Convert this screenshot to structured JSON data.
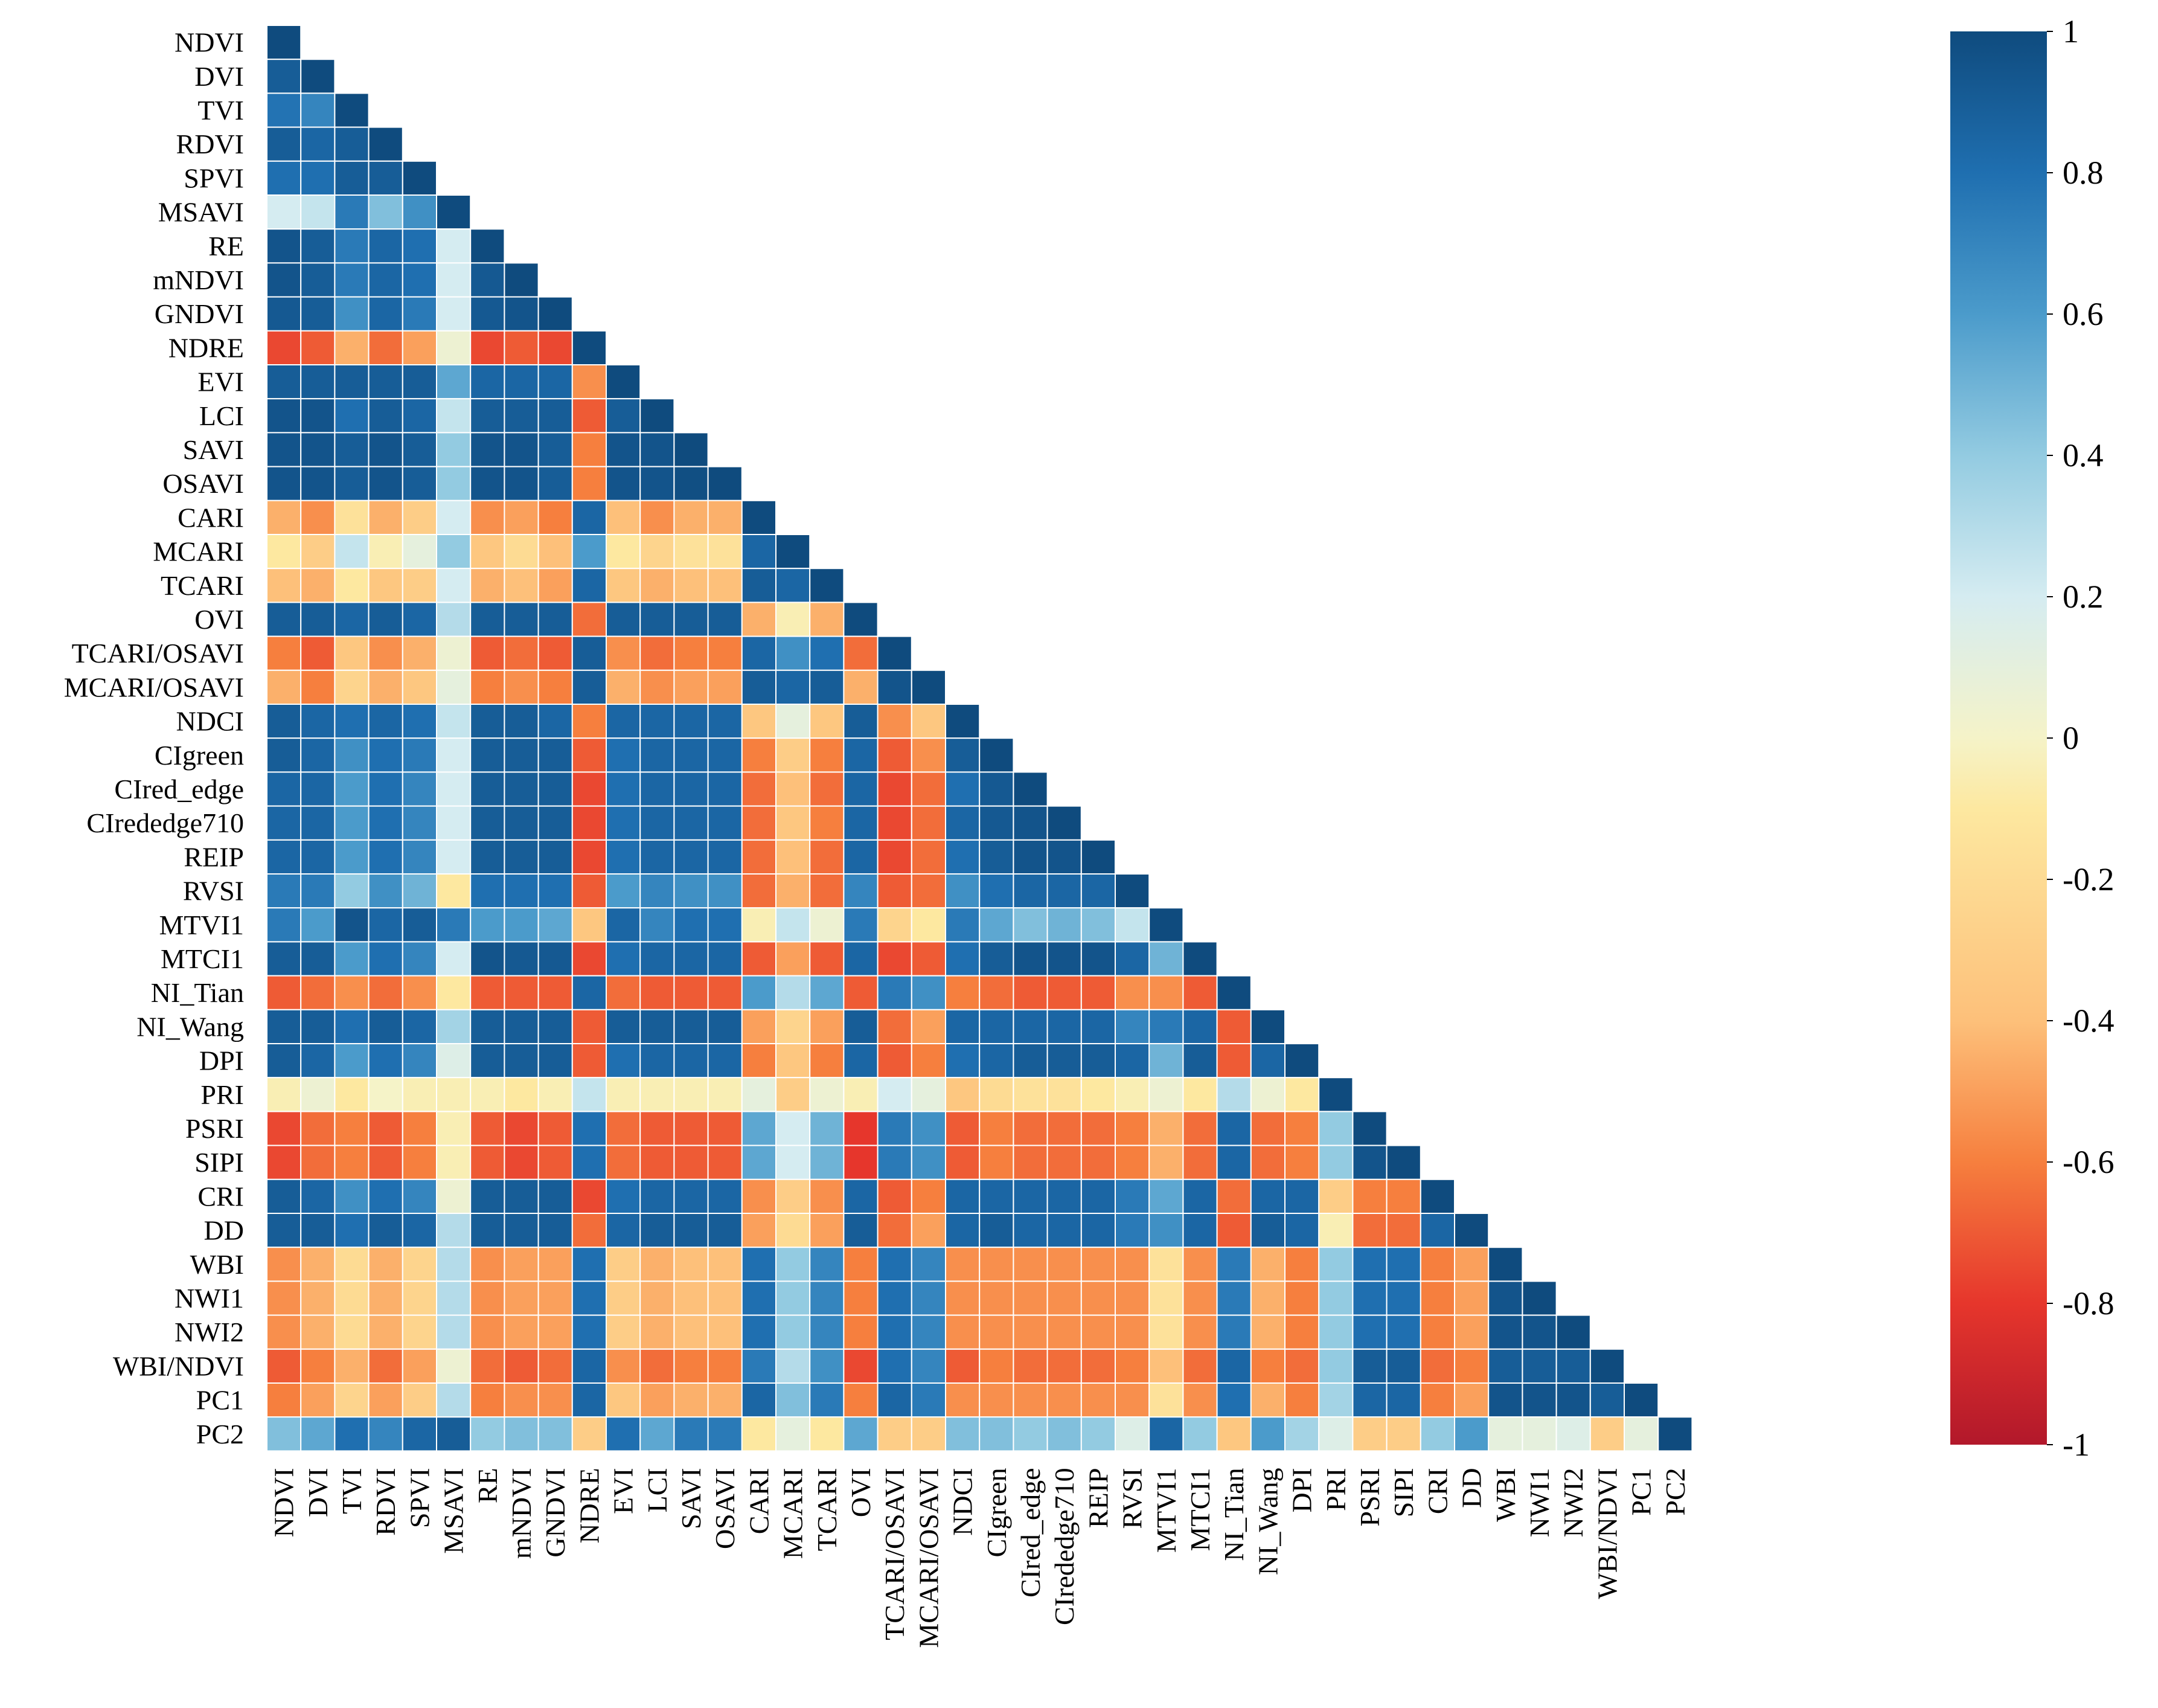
{
  "chart_data": {
    "type": "heatmap",
    "shape": "lower-triangle",
    "title": "",
    "xlabel": "",
    "ylabel": "",
    "variables": [
      "NDVI",
      "DVI",
      "TVI",
      "RDVI",
      "SPVI",
      "MSAVI",
      "RE",
      "mNDVI",
      "GNDVI",
      "NDRE",
      "EVI",
      "LCI",
      "SAVI",
      "OSAVI",
      "CARI",
      "MCARI",
      "TCARI",
      "OVI",
      "TCARI/OSAVI",
      "MCARI/OSAVI",
      "NDCI",
      "CIgreen",
      "CIred_edge",
      "CIrededge710",
      "REIP",
      "RVSI",
      "MTVI1",
      "MTCI1",
      "NI_Tian",
      "NI_Wang",
      "DPI",
      "PRI",
      "PSRI",
      "SIPI",
      "CRI",
      "DD",
      "WBI",
      "NWI1",
      "NWI2",
      "WBI/NDVI",
      "PC1",
      "PC2"
    ],
    "matrix": [
      [
        1
      ],
      [
        0.9,
        1
      ],
      [
        0.78,
        0.7,
        1
      ],
      [
        0.9,
        0.85,
        0.9,
        1
      ],
      [
        0.8,
        0.8,
        0.9,
        0.9,
        1
      ],
      [
        0.2,
        0.25,
        0.75,
        0.45,
        0.65,
        1
      ],
      [
        0.95,
        0.9,
        0.75,
        0.85,
        0.8,
        0.2,
        1
      ],
      [
        0.95,
        0.9,
        0.75,
        0.85,
        0.8,
        0.2,
        0.92,
        1
      ],
      [
        0.92,
        0.9,
        0.65,
        0.85,
        0.75,
        0.2,
        0.92,
        0.95,
        1
      ],
      [
        -0.75,
        -0.7,
        -0.45,
        -0.65,
        -0.5,
        0.05,
        -0.75,
        -0.7,
        -0.75,
        1
      ],
      [
        0.9,
        0.9,
        0.9,
        0.9,
        0.9,
        0.55,
        0.85,
        0.85,
        0.85,
        -0.55,
        1
      ],
      [
        0.95,
        0.95,
        0.8,
        0.9,
        0.85,
        0.25,
        0.9,
        0.9,
        0.9,
        -0.7,
        0.9,
        1
      ],
      [
        0.95,
        0.95,
        0.9,
        0.95,
        0.9,
        0.4,
        0.95,
        0.95,
        0.9,
        -0.6,
        0.95,
        0.95,
        1
      ],
      [
        0.95,
        0.95,
        0.9,
        0.95,
        0.9,
        0.4,
        0.95,
        0.95,
        0.9,
        -0.6,
        0.95,
        0.95,
        0.98,
        1
      ],
      [
        -0.45,
        -0.55,
        -0.15,
        -0.45,
        -0.3,
        0.2,
        -0.55,
        -0.5,
        -0.6,
        0.85,
        -0.4,
        -0.55,
        -0.45,
        -0.45,
        1
      ],
      [
        -0.1,
        -0.3,
        0.25,
        -0.05,
        0.1,
        0.4,
        -0.35,
        -0.2,
        -0.4,
        0.6,
        -0.1,
        -0.25,
        -0.15,
        -0.15,
        0.85,
        1
      ],
      [
        -0.4,
        -0.45,
        -0.1,
        -0.35,
        -0.3,
        0.2,
        -0.45,
        -0.4,
        -0.5,
        0.85,
        -0.35,
        -0.45,
        -0.4,
        -0.4,
        0.9,
        0.85,
        1
      ],
      [
        0.9,
        0.9,
        0.85,
        0.9,
        0.85,
        0.3,
        0.9,
        0.9,
        0.9,
        -0.65,
        0.9,
        0.9,
        0.9,
        0.9,
        -0.45,
        -0.05,
        -0.45,
        1
      ],
      [
        -0.6,
        -0.7,
        -0.35,
        -0.55,
        -0.45,
        0.05,
        -0.7,
        -0.65,
        -0.7,
        0.9,
        -0.55,
        -0.65,
        -0.6,
        -0.6,
        0.85,
        0.65,
        0.8,
        -0.65,
        1
      ],
      [
        -0.45,
        -0.6,
        -0.25,
        -0.45,
        -0.35,
        0.1,
        -0.6,
        -0.55,
        -0.6,
        0.9,
        -0.45,
        -0.55,
        -0.5,
        -0.5,
        0.9,
        0.85,
        0.9,
        -0.45,
        0.95,
        1
      ],
      [
        0.9,
        0.85,
        0.8,
        0.85,
        0.8,
        0.25,
        0.9,
        0.9,
        0.85,
        -0.6,
        0.85,
        0.85,
        0.85,
        0.85,
        -0.35,
        0.1,
        -0.35,
        0.9,
        -0.55,
        -0.35,
        1
      ],
      [
        0.9,
        0.85,
        0.65,
        0.8,
        0.75,
        0.2,
        0.9,
        0.9,
        0.9,
        -0.7,
        0.8,
        0.85,
        0.85,
        0.85,
        -0.6,
        -0.3,
        -0.6,
        0.85,
        -0.7,
        -0.55,
        0.9,
        1
      ],
      [
        0.85,
        0.85,
        0.6,
        0.8,
        0.7,
        0.2,
        0.9,
        0.9,
        0.9,
        -0.75,
        0.8,
        0.85,
        0.85,
        0.85,
        -0.65,
        -0.4,
        -0.65,
        0.85,
        -0.75,
        -0.65,
        0.8,
        0.92,
        1
      ],
      [
        0.85,
        0.85,
        0.6,
        0.8,
        0.7,
        0.2,
        0.9,
        0.9,
        0.9,
        -0.75,
        0.8,
        0.85,
        0.85,
        0.85,
        -0.65,
        -0.35,
        -0.6,
        0.85,
        -0.75,
        -0.65,
        0.85,
        0.92,
        0.95,
        1
      ],
      [
        0.85,
        0.85,
        0.6,
        0.8,
        0.7,
        0.2,
        0.9,
        0.9,
        0.9,
        -0.75,
        0.8,
        0.85,
        0.85,
        0.85,
        -0.65,
        -0.4,
        -0.65,
        0.85,
        -0.75,
        -0.65,
        0.8,
        0.9,
        0.95,
        0.95,
        1
      ],
      [
        0.75,
        0.75,
        0.4,
        0.65,
        0.5,
        -0.1,
        0.8,
        0.8,
        0.8,
        -0.7,
        0.6,
        0.7,
        0.65,
        0.65,
        -0.65,
        -0.45,
        -0.65,
        0.7,
        -0.7,
        -0.65,
        0.65,
        0.8,
        0.85,
        0.85,
        0.85,
        1
      ],
      [
        0.75,
        0.6,
        0.95,
        0.85,
        0.9,
        0.75,
        0.6,
        0.6,
        0.55,
        -0.35,
        0.85,
        0.7,
        0.8,
        0.8,
        -0.05,
        0.25,
        0.05,
        0.75,
        -0.25,
        -0.1,
        0.75,
        0.55,
        0.45,
        0.5,
        0.45,
        0.25,
        1
      ],
      [
        0.9,
        0.9,
        0.6,
        0.8,
        0.7,
        0.2,
        0.95,
        0.92,
        0.92,
        -0.75,
        0.8,
        0.85,
        0.85,
        0.85,
        -0.7,
        -0.5,
        -0.7,
        0.85,
        -0.75,
        -0.7,
        0.8,
        0.9,
        0.95,
        0.95,
        0.95,
        0.85,
        0.5,
        1
      ],
      [
        -0.7,
        -0.65,
        -0.55,
        -0.65,
        -0.55,
        -0.1,
        -0.7,
        -0.7,
        -0.7,
        0.85,
        -0.65,
        -0.7,
        -0.7,
        -0.7,
        0.6,
        0.3,
        0.55,
        -0.7,
        0.75,
        0.65,
        -0.6,
        -0.65,
        -0.7,
        -0.7,
        -0.7,
        -0.55,
        -0.55,
        -0.7,
        1
      ],
      [
        0.9,
        0.9,
        0.8,
        0.9,
        0.85,
        0.35,
        0.9,
        0.9,
        0.9,
        -0.7,
        0.9,
        0.9,
        0.9,
        0.9,
        -0.5,
        -0.25,
        -0.5,
        0.9,
        -0.65,
        -0.5,
        0.85,
        0.85,
        0.85,
        0.85,
        0.85,
        0.7,
        0.75,
        0.85,
        -0.7,
        1
      ],
      [
        0.9,
        0.85,
        0.6,
        0.8,
        0.7,
        0.15,
        0.9,
        0.9,
        0.9,
        -0.7,
        0.8,
        0.85,
        0.85,
        0.85,
        -0.6,
        -0.35,
        -0.6,
        0.85,
        -0.7,
        -0.6,
        0.8,
        0.85,
        0.9,
        0.9,
        0.9,
        0.85,
        0.5,
        0.9,
        -0.7,
        0.85,
        1
      ],
      [
        -0.05,
        0.05,
        -0.1,
        0,
        -0.05,
        -0.05,
        -0.05,
        -0.1,
        -0.05,
        0.25,
        -0.05,
        -0.05,
        -0.05,
        -0.05,
        0.1,
        -0.3,
        0.05,
        -0.05,
        0.2,
        0.1,
        -0.35,
        -0.2,
        -0.15,
        -0.15,
        -0.1,
        -0.05,
        0.05,
        -0.1,
        0.3,
        0.05,
        -0.1,
        1
      ],
      [
        -0.75,
        -0.65,
        -0.6,
        -0.7,
        -0.6,
        -0.05,
        -0.7,
        -0.75,
        -0.7,
        0.8,
        -0.65,
        -0.7,
        -0.7,
        -0.7,
        0.55,
        0.2,
        0.5,
        -0.8,
        0.75,
        0.65,
        -0.7,
        -0.6,
        -0.65,
        -0.65,
        -0.65,
        -0.6,
        -0.45,
        -0.65,
        0.85,
        -0.65,
        -0.6,
        0.4,
        1
      ],
      [
        -0.75,
        -0.65,
        -0.6,
        -0.7,
        -0.6,
        -0.05,
        -0.7,
        -0.75,
        -0.7,
        0.8,
        -0.65,
        -0.7,
        -0.7,
        -0.7,
        0.55,
        0.2,
        0.5,
        -0.8,
        0.75,
        0.65,
        -0.7,
        -0.6,
        -0.65,
        -0.65,
        -0.65,
        -0.6,
        -0.45,
        -0.65,
        0.85,
        -0.65,
        -0.6,
        0.4,
        0.95,
        1
      ],
      [
        0.9,
        0.85,
        0.65,
        0.8,
        0.7,
        0.05,
        0.9,
        0.9,
        0.9,
        -0.75,
        0.8,
        0.85,
        0.85,
        0.85,
        -0.55,
        -0.3,
        -0.55,
        0.85,
        -0.7,
        -0.6,
        0.85,
        0.85,
        0.85,
        0.85,
        0.85,
        0.75,
        0.55,
        0.85,
        -0.65,
        0.85,
        0.85,
        -0.3,
        -0.6,
        -0.6,
        1
      ],
      [
        0.9,
        0.9,
        0.8,
        0.9,
        0.85,
        0.3,
        0.9,
        0.9,
        0.9,
        -0.65,
        0.85,
        0.9,
        0.9,
        0.9,
        -0.5,
        -0.2,
        -0.5,
        0.9,
        -0.65,
        -0.5,
        0.85,
        0.9,
        0.85,
        0.85,
        0.85,
        0.75,
        0.65,
        0.85,
        -0.7,
        0.9,
        0.85,
        -0.05,
        -0.65,
        -0.65,
        0.85,
        1
      ],
      [
        -0.55,
        -0.45,
        -0.2,
        -0.45,
        -0.25,
        0.3,
        -0.55,
        -0.5,
        -0.5,
        0.8,
        -0.3,
        -0.45,
        -0.4,
        -0.4,
        0.8,
        0.4,
        0.7,
        -0.6,
        0.8,
        0.7,
        -0.55,
        -0.55,
        -0.55,
        -0.55,
        -0.55,
        -0.55,
        -0.15,
        -0.55,
        0.75,
        -0.45,
        -0.6,
        0.4,
        0.8,
        0.8,
        -0.6,
        -0.5,
        1
      ],
      [
        -0.55,
        -0.45,
        -0.2,
        -0.45,
        -0.25,
        0.3,
        -0.55,
        -0.5,
        -0.5,
        0.8,
        -0.3,
        -0.45,
        -0.4,
        -0.4,
        0.8,
        0.4,
        0.7,
        -0.6,
        0.8,
        0.7,
        -0.55,
        -0.55,
        -0.55,
        -0.55,
        -0.55,
        -0.55,
        -0.15,
        -0.55,
        0.75,
        -0.45,
        -0.6,
        0.4,
        0.8,
        0.8,
        -0.6,
        -0.5,
        0.95,
        1
      ],
      [
        -0.55,
        -0.45,
        -0.2,
        -0.45,
        -0.25,
        0.3,
        -0.55,
        -0.5,
        -0.5,
        0.8,
        -0.3,
        -0.45,
        -0.4,
        -0.4,
        0.8,
        0.4,
        0.7,
        -0.6,
        0.8,
        0.7,
        -0.55,
        -0.55,
        -0.55,
        -0.55,
        -0.55,
        -0.55,
        -0.15,
        -0.55,
        0.75,
        -0.45,
        -0.6,
        0.4,
        0.8,
        0.8,
        -0.6,
        -0.5,
        0.95,
        0.95,
        1
      ],
      [
        -0.7,
        -0.6,
        -0.45,
        -0.65,
        -0.5,
        0.05,
        -0.65,
        -0.7,
        -0.65,
        0.85,
        -0.55,
        -0.65,
        -0.6,
        -0.6,
        0.75,
        0.3,
        0.65,
        -0.75,
        0.8,
        0.7,
        -0.7,
        -0.6,
        -0.65,
        -0.65,
        -0.65,
        -0.6,
        -0.4,
        -0.65,
        0.85,
        -0.6,
        -0.65,
        0.4,
        0.9,
        0.9,
        -0.65,
        -0.6,
        0.9,
        0.9,
        0.9,
        1
      ],
      [
        -0.6,
        -0.5,
        -0.25,
        -0.5,
        -0.3,
        0.3,
        -0.6,
        -0.55,
        -0.55,
        0.85,
        -0.35,
        -0.5,
        -0.45,
        -0.45,
        0.85,
        0.45,
        0.75,
        -0.6,
        0.85,
        0.75,
        -0.55,
        -0.55,
        -0.55,
        -0.55,
        -0.55,
        -0.55,
        -0.15,
        -0.55,
        0.8,
        -0.45,
        -0.6,
        0.35,
        0.85,
        0.85,
        -0.6,
        -0.5,
        0.95,
        0.95,
        0.95,
        0.9,
        1
      ],
      [
        0.45,
        0.55,
        0.8,
        0.7,
        0.85,
        0.9,
        0.4,
        0.45,
        0.45,
        -0.3,
        0.8,
        0.55,
        0.75,
        0.75,
        -0.1,
        0.1,
        -0.1,
        0.55,
        -0.3,
        -0.3,
        0.45,
        0.45,
        0.4,
        0.45,
        0.4,
        0.15,
        0.85,
        0.4,
        -0.35,
        0.6,
        0.35,
        0.15,
        -0.3,
        -0.3,
        0.4,
        0.6,
        0.1,
        0.1,
        0.15,
        -0.3,
        0.1,
        1
      ]
    ],
    "colorbar": {
      "min": -1,
      "max": 1,
      "tick_labels": [
        "1",
        "0.8",
        "0.6",
        "0.4",
        "0.2",
        "0",
        "-0.2",
        "-0.4",
        "-0.6",
        "-0.8",
        "-1"
      ],
      "colors": [
        "#67001f",
        "#b2182b",
        "#d6604d",
        "#f4a582",
        "#fddbc7",
        "#f7f7f7",
        "#d1e5f0",
        "#92c5de",
        "#4393c3",
        "#2166ac",
        "#053061"
      ],
      "scheme_stops": [
        "#b2182b",
        "#e6362c",
        "#f67f3e",
        "#fdc07a",
        "#fde8a0",
        "#f5f3c8",
        "#d5ecf1",
        "#93cbe1",
        "#4b9bcb",
        "#1f6fb0",
        "#0f4b7e"
      ]
    }
  }
}
